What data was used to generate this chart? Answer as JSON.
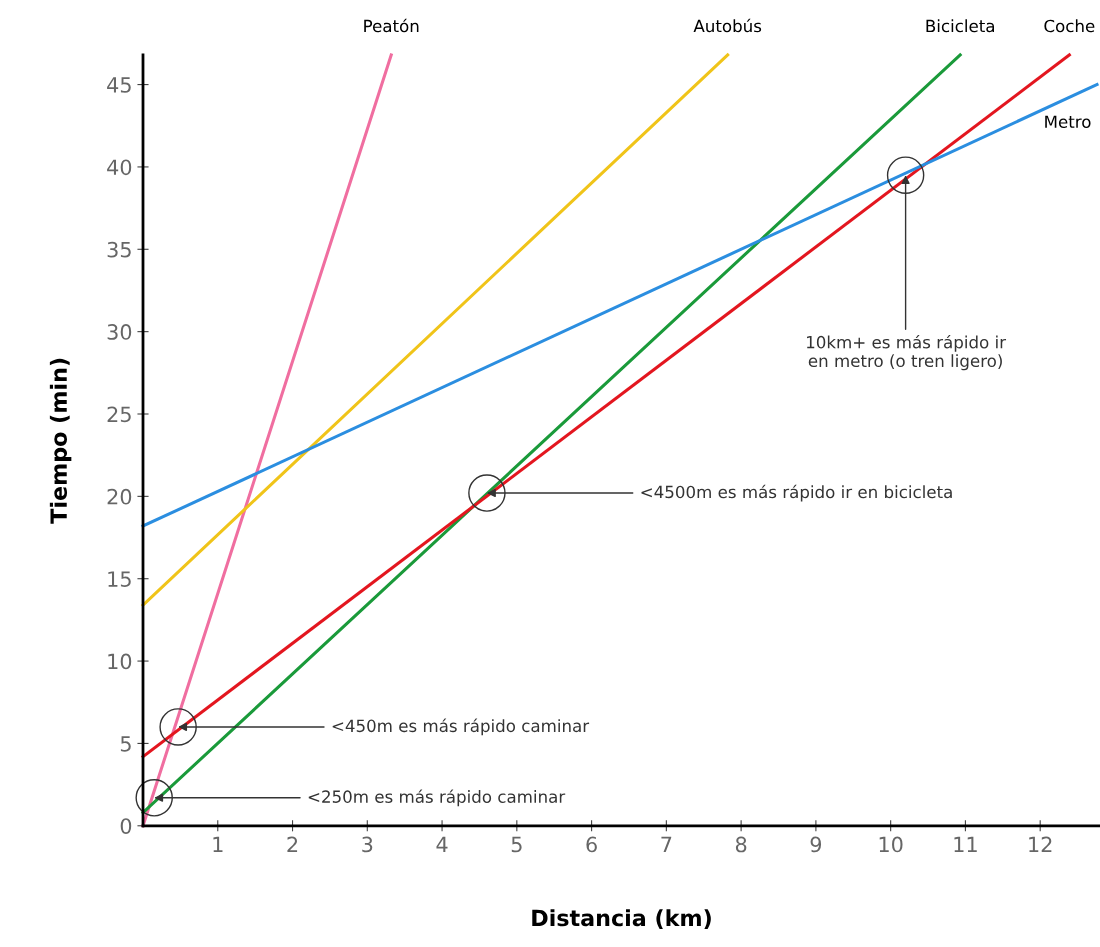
{
  "chart_data": {
    "type": "line",
    "xlabel": "Distancia (km)",
    "ylabel": "Tiempo (min)",
    "series": [
      {
        "name": "Peatón",
        "color": "#f06ea0",
        "x": [
          0,
          3.32
        ],
        "values": [
          0,
          46.8
        ]
      },
      {
        "name": "Autobús",
        "color": "#f0c419",
        "x": [
          0,
          7.82
        ],
        "values": [
          13.4,
          46.8
        ]
      },
      {
        "name": "Bicicleta",
        "color": "#1a9a3a",
        "x": [
          0,
          10.93
        ],
        "values": [
          0.8,
          46.8
        ]
      },
      {
        "name": "Coche",
        "color": "#e3161f",
        "x": [
          0,
          12.39
        ],
        "values": [
          4.2,
          46.8
        ]
      },
      {
        "name": "Metro",
        "color": "#2b8ee0",
        "x": [
          0,
          12.76
        ],
        "values": [
          18.2,
          45
        ]
      }
    ],
    "xlim": [
      0,
      12.8
    ],
    "ylim": [
      0,
      46.8
    ],
    "xticks": [
      1,
      2,
      3,
      4,
      5,
      6,
      7,
      8,
      9,
      10,
      11,
      12
    ],
    "yticks": [
      0,
      5,
      10,
      15,
      20,
      25,
      30,
      35,
      40,
      45
    ],
    "grid": false,
    "legend": false,
    "marker": "none",
    "line_style": "solid",
    "annotations": [
      {
        "text": "<250m es más rápido caminar",
        "x": 0.15,
        "y": 1.7
      },
      {
        "text": "<450m es más rápido caminar",
        "x": 0.47,
        "y": 6
      },
      {
        "text": "<4500m es más rápido ir en bicicleta",
        "x": 4.6,
        "y": 20.2
      },
      {
        "text": "10km+ es más rápido ir\nen metro (o tren ligero)",
        "x": 10.2,
        "y": 39.5
      }
    ]
  }
}
